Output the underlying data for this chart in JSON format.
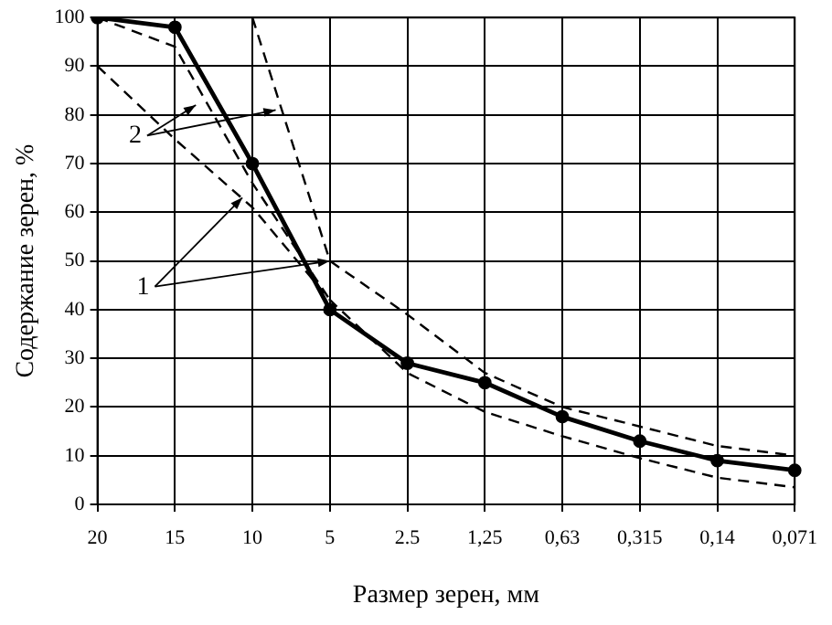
{
  "chart_data": {
    "type": "line",
    "xlabel": "Размер зерен, мм",
    "ylabel": "Содержание зерен, %",
    "categories": [
      "20",
      "15",
      "10",
      "5",
      "2.5",
      "1,25",
      "0,63",
      "0,315",
      "0,14",
      "0,071"
    ],
    "series": [
      {
        "color": "#000000",
        "marker": "circle",
        "line_style": "solid",
        "values": [
          100,
          98,
          70,
          40,
          29,
          25,
          18,
          13,
          9,
          7
        ]
      },
      {
        "color": "#000000",
        "marker": "none",
        "line_style": "dashed",
        "values": [
          null,
          null,
          100,
          50,
          39,
          27,
          20,
          16,
          12,
          10
        ]
      },
      {
        "color": "#000000",
        "marker": "none",
        "line_style": "dashed",
        "values": [
          90,
          75,
          61,
          42,
          27,
          19,
          14,
          9.5,
          5.5,
          3.5
        ]
      },
      {
        "color": "#000000",
        "marker": "none",
        "line_style": "dashed",
        "values": [
          100,
          94,
          66,
          42,
          null,
          null,
          null,
          null,
          null,
          null
        ]
      }
    ],
    "ylim": [
      0,
      100
    ],
    "yticks": [
      0,
      10,
      20,
      30,
      40,
      50,
      60,
      70,
      80,
      90,
      100
    ],
    "grid": true,
    "legend": false,
    "annotations": [
      {
        "text": "1",
        "x": "5",
        "y": 50
      },
      {
        "text": "2",
        "y": 81
      }
    ]
  }
}
